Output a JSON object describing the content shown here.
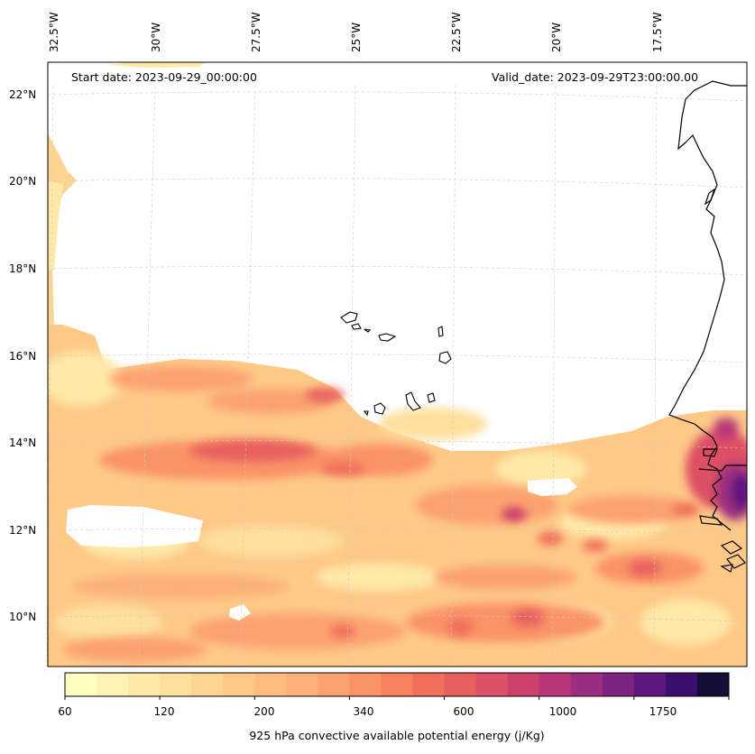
{
  "header": {
    "start_date": "Start date: 2023-09-29_00:00:00",
    "valid_date": "Valid_date: 2023-09-29T23:00:00.00"
  },
  "longitude_labels": [
    "32.5°W",
    "30°W",
    "27.5°W",
    "25°W",
    "22.5°W",
    "20°W",
    "17.5°W"
  ],
  "latitude_labels": [
    "22°N",
    "20°N",
    "18°N",
    "16°N",
    "14°N",
    "12°N",
    "10°N"
  ],
  "colorbar": {
    "title": "925 hPa convective available potential energy (j/Kg)",
    "tick_labels": [
      "60",
      "120",
      "200",
      "340",
      "600",
      "1000",
      "1750"
    ],
    "levels": [
      60,
      80,
      100,
      120,
      140,
      160,
      200,
      240,
      280,
      340,
      400,
      480,
      600,
      720,
      860,
      1000,
      1200,
      1450,
      1750,
      2100,
      2500
    ],
    "colors": [
      "#fcfdbf",
      "#fdf3b4",
      "#fee9a8",
      "#fedf9c",
      "#fed590",
      "#fec987",
      "#febd7e",
      "#feb078",
      "#fca26f",
      "#fa9366",
      "#f7815e",
      "#f1705c",
      "#e8605e",
      "#dd5065",
      "#cc416a",
      "#b73779",
      "#9c2e7f",
      "#7d2482",
      "#5f187f",
      "#3b0f70",
      "#140e36"
    ]
  },
  "field": {
    "variable": "925 hPa convective available potential energy",
    "unit": "j/Kg"
  }
}
